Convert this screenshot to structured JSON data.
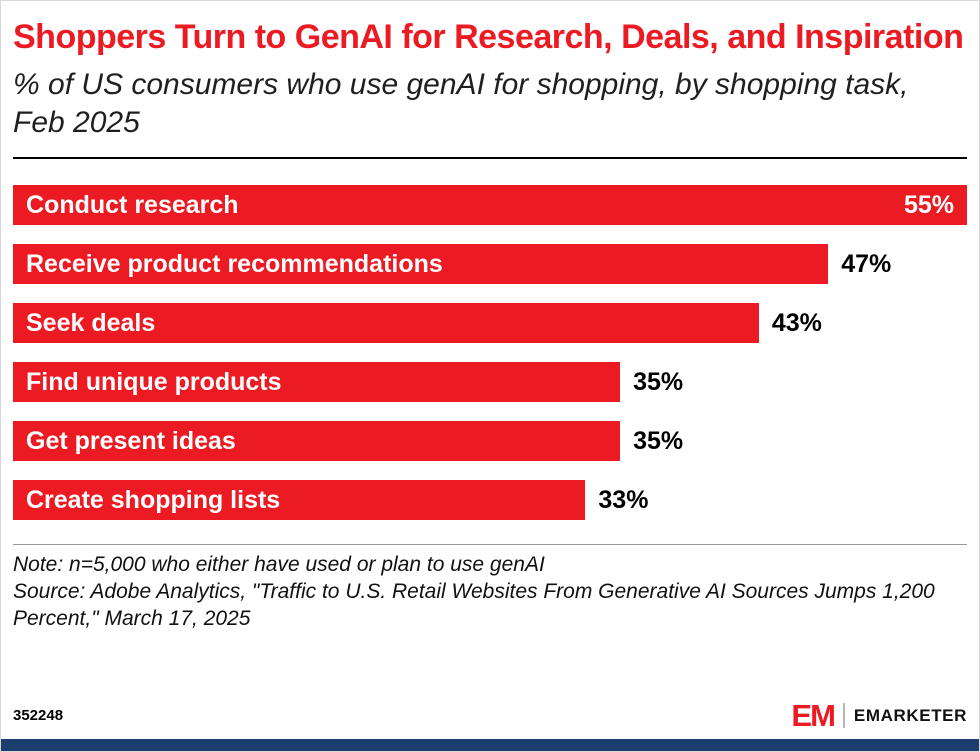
{
  "header": {
    "title": "Shoppers Turn to GenAI for Research, Deals, and Inspiration",
    "subtitle": "% of US consumers who use genAI for shopping, by shopping task, Feb 2025"
  },
  "chart_data": {
    "type": "bar",
    "orientation": "horizontal",
    "title": "Shoppers Turn to GenAI for Research, Deals, and Inspiration",
    "subtitle": "% of US consumers who use genAI for shopping, by shopping task, Feb 2025",
    "categories": [
      "Conduct research",
      "Receive product recommendations",
      "Seek deals",
      "Find unique products",
      "Get present ideas",
      "Create shopping lists"
    ],
    "values": [
      55,
      47,
      43,
      35,
      35,
      33
    ],
    "value_labels": [
      "55%",
      "47%",
      "43%",
      "35%",
      "35%",
      "33%"
    ],
    "unit": "%",
    "xlim": [
      0,
      55
    ],
    "grid": false,
    "legend": "none",
    "bar_color": "#EC1B23"
  },
  "footnotes": {
    "note": "Note: n=5,000 who either have used or plan to use genAI",
    "source": "Source: Adobe Analytics, \"Traffic to U.S. Retail Websites From Generative AI Sources Jumps 1,200 Percent,\" March 17, 2025"
  },
  "footer": {
    "chart_id": "352248",
    "logo_monogram": "EM",
    "brand_name": "EMARKETER"
  },
  "colors": {
    "accent_red": "#EC1B23",
    "footer_bar_blue": "#1C3E6E"
  }
}
